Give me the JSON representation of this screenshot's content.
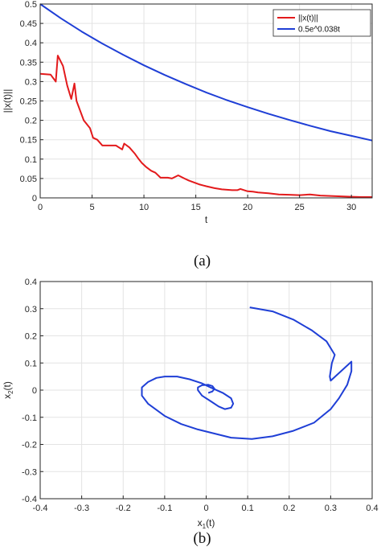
{
  "chart_data": [
    {
      "type": "line",
      "panel_label": "(a)",
      "xlabel": "t",
      "ylabel": "||x(t)||",
      "xlim": [
        0,
        32
      ],
      "ylim": [
        0,
        0.5
      ],
      "xticks": [
        0,
        5,
        10,
        15,
        20,
        25,
        30
      ],
      "xtick_labels": [
        "0",
        "5",
        "10",
        "15",
        "20",
        "25",
        "30"
      ],
      "yticks": [
        0,
        0.05,
        0.1,
        0.15,
        0.2,
        0.25,
        0.3,
        0.35,
        0.4,
        0.45,
        0.5
      ],
      "ytick_labels": [
        "0",
        "0.05",
        "0.1",
        "0.15",
        "0.2",
        "0.25",
        "0.3",
        "0.35",
        "0.4",
        "0.45",
        "0.5"
      ],
      "grid": true,
      "legend_position": "top-right",
      "series": [
        {
          "name": "||x(t)||",
          "color": "#e31a1c",
          "x": [
            0,
            1.0,
            1.5,
            1.7,
            2.2,
            2.6,
            3.0,
            3.3,
            3.5,
            4.2,
            4.8,
            5.1,
            5.5,
            6.0,
            6.7,
            7.3,
            7.9,
            8.1,
            8.6,
            9.1,
            9.5,
            9.8,
            10.2,
            10.7,
            11.1,
            11.6,
            12.3,
            12.7,
            13.3,
            13.9,
            14.3,
            14.8,
            15.3,
            16.0,
            16.8,
            17.5,
            18.5,
            19.0,
            19.3,
            20.0,
            20.5,
            21.0,
            22.0,
            23.0,
            24.0,
            25.0,
            26.0,
            27.0,
            28.0,
            29.0,
            30.0,
            31.0,
            32.0
          ],
          "values": [
            0.32,
            0.318,
            0.3,
            0.367,
            0.34,
            0.29,
            0.255,
            0.295,
            0.25,
            0.2,
            0.18,
            0.155,
            0.15,
            0.135,
            0.135,
            0.135,
            0.125,
            0.14,
            0.13,
            0.115,
            0.1,
            0.09,
            0.08,
            0.07,
            0.065,
            0.052,
            0.052,
            0.05,
            0.058,
            0.05,
            0.045,
            0.04,
            0.035,
            0.03,
            0.025,
            0.022,
            0.02,
            0.02,
            0.023,
            0.017,
            0.016,
            0.014,
            0.012,
            0.009,
            0.008,
            0.007,
            0.009,
            0.006,
            0.005,
            0.004,
            0.003,
            0.002,
            0.002
          ]
        },
        {
          "name": "0.5e^0.038t",
          "color": "#1f3fd6",
          "function": "0.5*exp(-0.038*t)",
          "x": [
            0,
            2,
            4,
            6,
            8,
            10,
            12,
            14,
            16,
            18,
            20,
            22,
            24,
            26,
            28,
            30,
            32
          ],
          "values": [
            0.5,
            0.463,
            0.429,
            0.398,
            0.369,
            0.342,
            0.317,
            0.294,
            0.272,
            0.252,
            0.234,
            0.217,
            0.201,
            0.186,
            0.172,
            0.16,
            0.148
          ]
        }
      ]
    },
    {
      "type": "line",
      "panel_label": "(b)",
      "xlabel": "x",
      "xlabel_sub": "1",
      "xlabel_suffix": "(t)",
      "ylabel": "x",
      "ylabel_sub": "2",
      "ylabel_suffix": "(t)",
      "xlim": [
        -0.4,
        0.4
      ],
      "ylim": [
        -0.4,
        0.4
      ],
      "xticks": [
        -0.4,
        -0.3,
        -0.2,
        -0.1,
        0,
        0.1,
        0.2,
        0.3,
        0.4
      ],
      "xtick_labels": [
        "-0.4",
        "-0.3",
        "-0.2",
        "-0.1",
        "0",
        "0.1",
        "0.2",
        "0.3",
        "0.4"
      ],
      "yticks": [
        -0.4,
        -0.3,
        -0.2,
        -0.1,
        0,
        0.1,
        0.2,
        0.3,
        0.4
      ],
      "ytick_labels": [
        "-0.4",
        "-0.3",
        "-0.2",
        "-0.1",
        "0",
        "0.1",
        "0.2",
        "0.3",
        "0.4"
      ],
      "grid": true,
      "series": [
        {
          "color": "#1f3fd6",
          "x": [
            0.105,
            0.16,
            0.21,
            0.255,
            0.29,
            0.31,
            0.303,
            0.298,
            0.3,
            0.35,
            0.35,
            0.34,
            0.32,
            0.3,
            0.26,
            0.21,
            0.16,
            0.11,
            0.06,
            0.02,
            -0.02,
            -0.06,
            -0.1,
            -0.14,
            -0.155,
            -0.155,
            -0.14,
            -0.12,
            -0.1,
            -0.07,
            -0.04,
            -0.01,
            0.01,
            0.04,
            0.06,
            0.065,
            0.06,
            0.045,
            0.03,
            0.01,
            -0.01,
            -0.02,
            -0.02,
            -0.01,
            0.005,
            0.015,
            0.02,
            0.015,
            0.005
          ],
          "y": [
            0.305,
            0.29,
            0.26,
            0.22,
            0.18,
            0.13,
            0.1,
            0.05,
            0.035,
            0.105,
            0.07,
            0.02,
            -0.03,
            -0.07,
            -0.12,
            -0.15,
            -0.17,
            -0.18,
            -0.175,
            -0.16,
            -0.145,
            -0.125,
            -0.095,
            -0.05,
            -0.02,
            0.01,
            0.03,
            0.045,
            0.05,
            0.05,
            0.04,
            0.025,
            0.01,
            -0.01,
            -0.03,
            -0.05,
            -0.065,
            -0.07,
            -0.06,
            -0.04,
            -0.02,
            0.0,
            0.01,
            0.018,
            0.02,
            0.015,
            0.005,
            -0.005,
            -0.01
          ]
        }
      ]
    }
  ]
}
